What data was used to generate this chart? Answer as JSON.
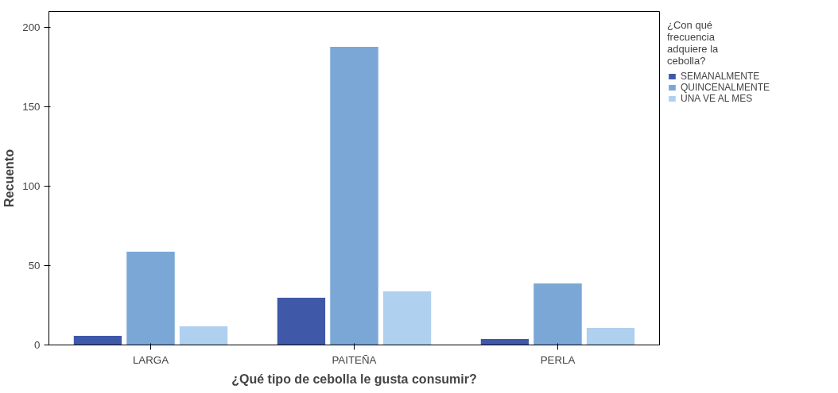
{
  "chart_data": {
    "type": "bar",
    "xlabel": "¿Qué tipo de cebolla le gusta consumir?",
    "ylabel": "Recuento",
    "legend_title": "¿Con qué frecuencia adquiere la cebolla?",
    "categories": [
      "LARGA",
      "PAITEÑA",
      "PERLA"
    ],
    "series": [
      {
        "name": "SEMANALMENTE",
        "color": "#3f58a8",
        "values": [
          6,
          30,
          4
        ]
      },
      {
        "name": "QUINCENALMENTE",
        "color": "#7ba7d6",
        "values": [
          59,
          188,
          39
        ]
      },
      {
        "name": "UNA VE AL MES",
        "color": "#afd0ee",
        "values": [
          12,
          34,
          11
        ]
      }
    ],
    "ylim": [
      0,
      210
    ],
    "yticks": [
      0,
      50,
      100,
      150,
      200
    ],
    "grid": false,
    "legend": "top right"
  }
}
